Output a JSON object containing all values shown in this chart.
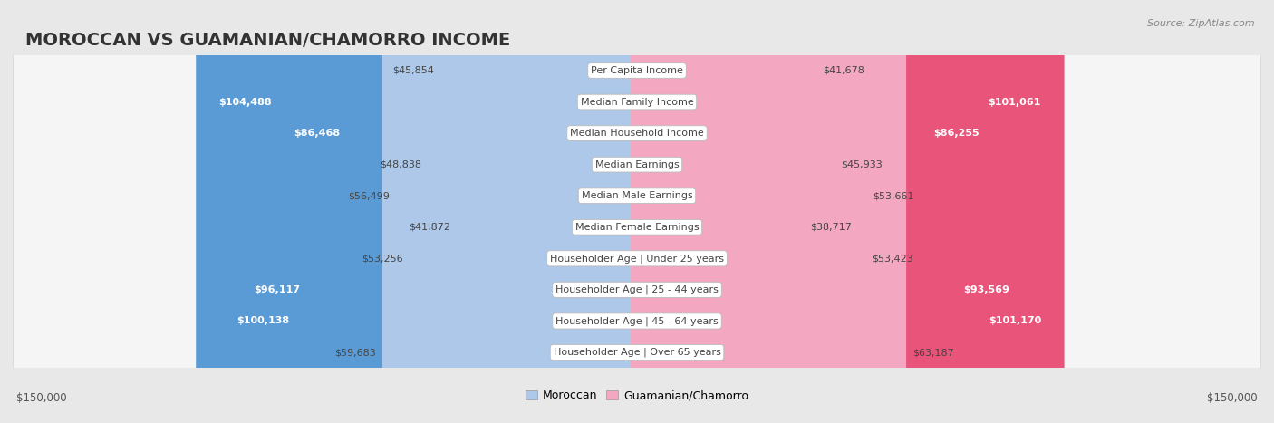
{
  "title": "MOROCCAN VS GUAMANIAN/CHAMORRO INCOME",
  "source": "Source: ZipAtlas.com",
  "categories": [
    "Per Capita Income",
    "Median Family Income",
    "Median Household Income",
    "Median Earnings",
    "Median Male Earnings",
    "Median Female Earnings",
    "Householder Age | Under 25 years",
    "Householder Age | 25 - 44 years",
    "Householder Age | 45 - 64 years",
    "Householder Age | Over 65 years"
  ],
  "moroccan_values": [
    45854,
    104488,
    86468,
    48838,
    56499,
    41872,
    53256,
    96117,
    100138,
    59683
  ],
  "guamanian_values": [
    41678,
    101061,
    86255,
    45933,
    53661,
    38717,
    53423,
    93569,
    101170,
    63187
  ],
  "moroccan_labels": [
    "$45,854",
    "$104,488",
    "$86,468",
    "$48,838",
    "$56,499",
    "$41,872",
    "$53,256",
    "$96,117",
    "$100,138",
    "$59,683"
  ],
  "guamanian_labels": [
    "$41,678",
    "$101,061",
    "$86,255",
    "$45,933",
    "$53,661",
    "$38,717",
    "$53,423",
    "$93,569",
    "$101,170",
    "$63,187"
  ],
  "moroccan_color_light": "#adc8e8",
  "moroccan_color_dark": "#5b9bd5",
  "guamanian_color_light": "#f4a7c0",
  "guamanian_color_dark": "#e8547a",
  "inside_threshold": 70000,
  "max_value": 150000,
  "x_label_left": "$150,000",
  "x_label_right": "$150,000",
  "legend_moroccan": "Moroccan",
  "legend_guamanian": "Guamanian/Chamorro",
  "background_color": "#e8e8e8",
  "row_bg_color": "#f5f5f5",
  "title_fontsize": 14,
  "source_fontsize": 8,
  "bar_fontsize": 8,
  "cat_fontsize": 8
}
